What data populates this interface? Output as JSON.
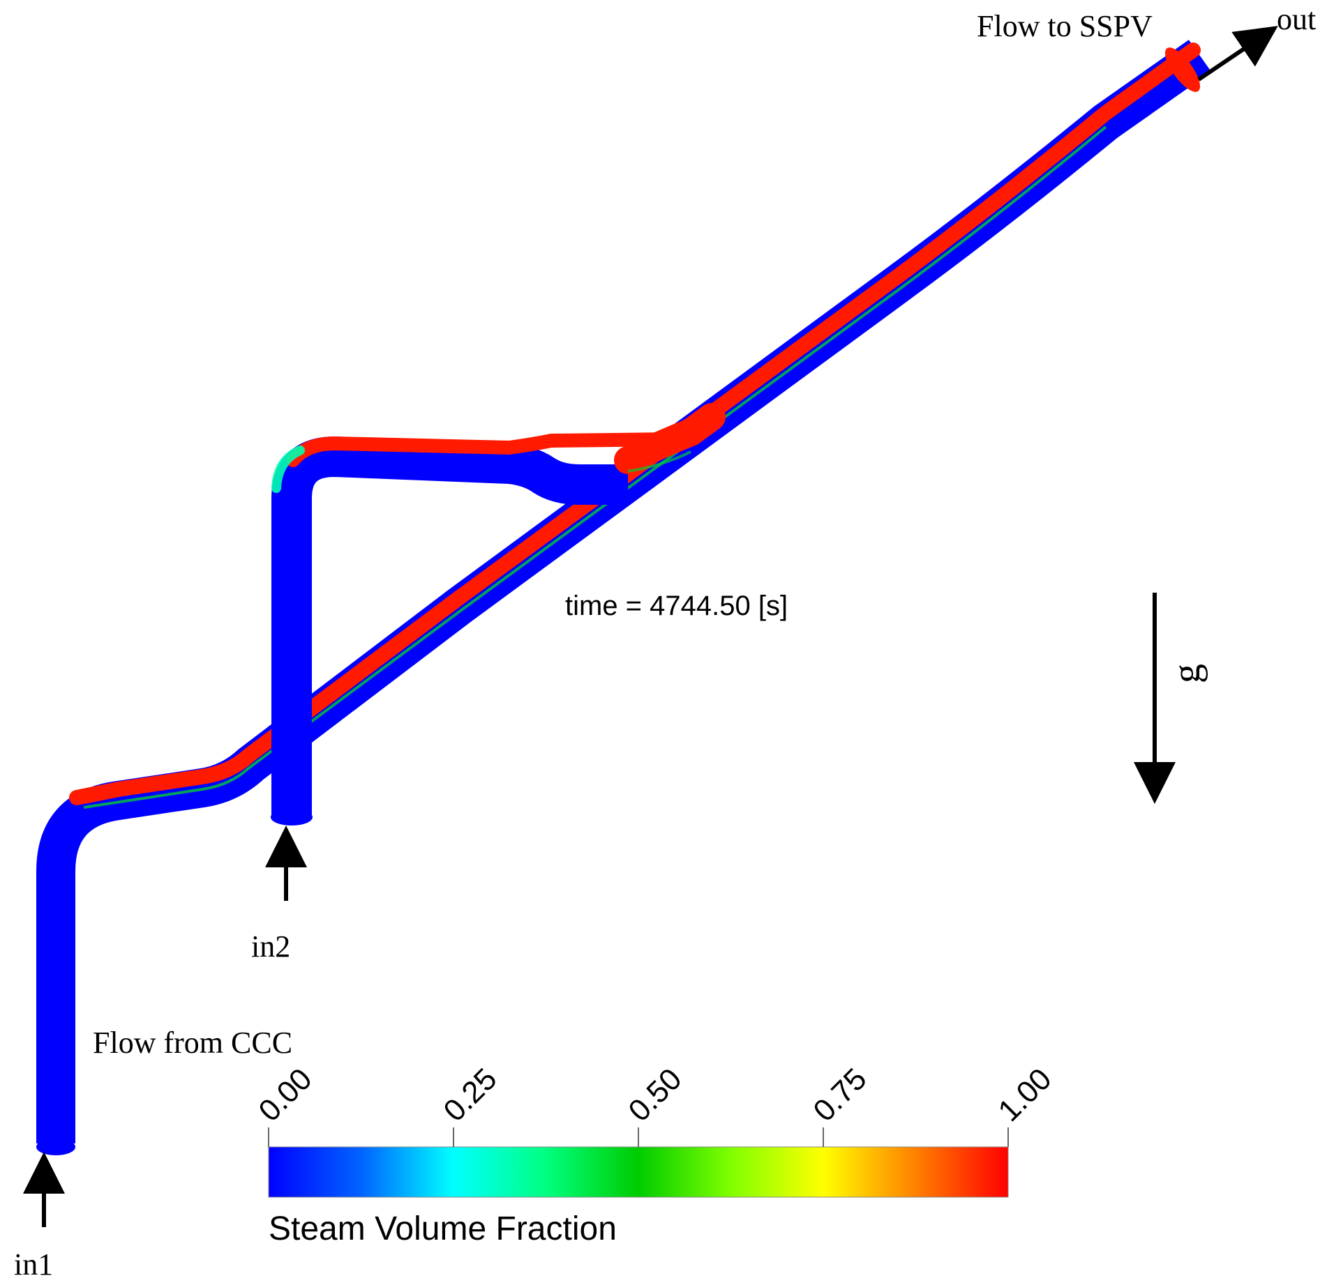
{
  "labels": {
    "flow_to": "Flow to SSPV",
    "out": "out",
    "flow_from": "Flow from CCC",
    "in1": "in1",
    "in2": "in2",
    "gravity": "g",
    "time": "time = 4744.50 [s]"
  },
  "colorbar": {
    "title": "Steam Volume Fraction",
    "ticks": [
      "0.00",
      "0.25",
      "0.50",
      "0.75",
      "1.00"
    ],
    "min": 0.0,
    "max": 1.0,
    "stops": [
      {
        "value": 0.0,
        "color": "#0000ff"
      },
      {
        "value": 0.125,
        "color": "#0064ff"
      },
      {
        "value": 0.25,
        "color": "#00ffff"
      },
      {
        "value": 0.375,
        "color": "#00ff80"
      },
      {
        "value": 0.5,
        "color": "#00cc00"
      },
      {
        "value": 0.625,
        "color": "#80ff00"
      },
      {
        "value": 0.75,
        "color": "#ffff00"
      },
      {
        "value": 0.875,
        "color": "#ff8000"
      },
      {
        "value": 1.0,
        "color": "#ff0000"
      }
    ]
  },
  "colors": {
    "liquid": "#0000ff",
    "steam": "#ff1a00",
    "mixed": "#00cc33",
    "arrow": "#000000"
  }
}
